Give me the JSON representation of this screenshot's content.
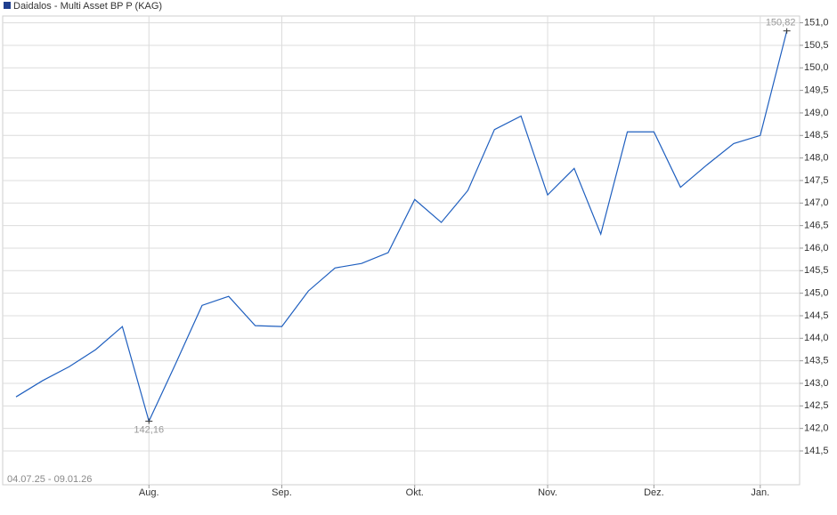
{
  "chart_data": {
    "type": "line",
    "title": "Daidalos - Multi Asset BP P (KAG)",
    "subtitle": "04.07.25 - 09.01.26",
    "categories": [
      null,
      null,
      null,
      null,
      null,
      "Aug.",
      null,
      null,
      null,
      null,
      "Sep.",
      null,
      null,
      null,
      null,
      "Okt.",
      null,
      null,
      null,
      null,
      "Nov.",
      null,
      null,
      null,
      "Dez.",
      null,
      null,
      null,
      "Jan.",
      null
    ],
    "series": [
      {
        "name": "Daidalos - Multi Asset BP P (KAG)",
        "color": "#1f5fbf",
        "values": [
          142.7,
          143.06,
          143.37,
          143.75,
          144.26,
          142.16,
          143.43,
          144.73,
          144.93,
          144.28,
          144.26,
          145.05,
          145.56,
          145.66,
          145.9,
          147.08,
          146.57,
          147.28,
          148.63,
          148.93,
          147.18,
          147.77,
          146.31,
          148.58,
          148.58,
          147.35,
          147.85,
          148.32,
          148.5,
          150.82
        ],
        "value_labels": [
          null,
          null,
          null,
          null,
          null,
          "142,16",
          null,
          null,
          null,
          null,
          null,
          null,
          null,
          null,
          null,
          null,
          null,
          null,
          null,
          null,
          null,
          null,
          null,
          null,
          null,
          null,
          null,
          null,
          null,
          "150,82"
        ]
      }
    ],
    "ylim": [
      140.75,
      151.15
    ],
    "yticks": [
      {
        "value": 141.5,
        "label": "141,5"
      },
      {
        "value": 142,
        "label": "142,0"
      },
      {
        "value": 142.5,
        "label": "142,5"
      },
      {
        "value": 143,
        "label": "143,0"
      },
      {
        "value": 143.5,
        "label": "143,5"
      },
      {
        "value": 144,
        "label": "144,0"
      },
      {
        "value": 144.5,
        "label": "144,5"
      },
      {
        "value": 145,
        "label": "145,0"
      },
      {
        "value": 145.5,
        "label": "145,5"
      },
      {
        "value": 146,
        "label": "146,0"
      },
      {
        "value": 146.5,
        "label": "146,5"
      },
      {
        "value": 147,
        "label": "147,0"
      },
      {
        "value": 147.5,
        "label": "147,5"
      },
      {
        "value": 148,
        "label": "148,0"
      },
      {
        "value": 148.5,
        "label": "148,5"
      },
      {
        "value": 149,
        "label": "149,0"
      },
      {
        "value": 149.5,
        "label": "149,5"
      },
      {
        "value": 150,
        "label": "150,0"
      },
      {
        "value": 150.5,
        "label": "150,5"
      },
      {
        "value": 151,
        "label": "151,0"
      }
    ],
    "grid": true
  }
}
